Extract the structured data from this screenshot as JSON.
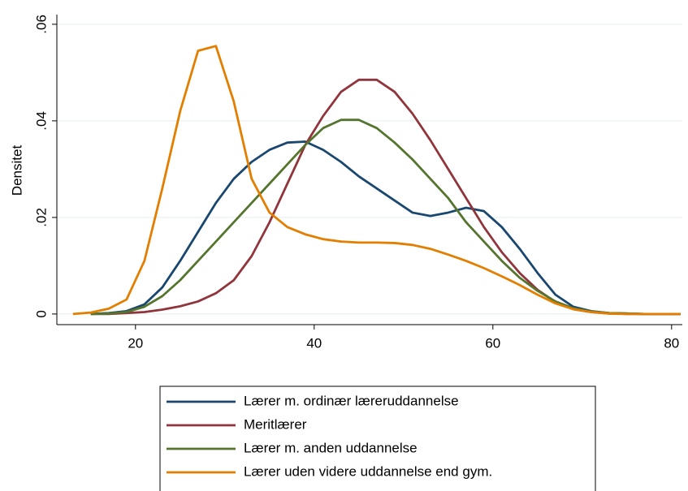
{
  "chart_data": {
    "type": "line",
    "y_label": "Densitet",
    "x": [
      13,
      15,
      17,
      19,
      21,
      23,
      25,
      27,
      29,
      31,
      33,
      35,
      37,
      39,
      41,
      43,
      45,
      47,
      49,
      51,
      53,
      55,
      57,
      59,
      61,
      63,
      65,
      67,
      69,
      71,
      73,
      75,
      77,
      79,
      81
    ],
    "series": [
      {
        "name": "Lærer m. ordinær læreruddannelse",
        "color": "#1a476f",
        "values": [
          null,
          0,
          0.0002,
          0.0006,
          0.002,
          0.0055,
          0.011,
          0.017,
          0.023,
          0.028,
          0.0315,
          0.034,
          0.0355,
          0.0357,
          0.034,
          0.0315,
          0.0285,
          0.026,
          0.0235,
          0.021,
          0.0203,
          0.021,
          0.022,
          0.0213,
          0.018,
          0.0135,
          0.0085,
          0.004,
          0.0015,
          0.0006,
          0.0002,
          0.0001,
          0,
          0,
          0
        ]
      },
      {
        "name": "Meritlærer",
        "color": "#90353b",
        "values": [
          null,
          0,
          0,
          0.0002,
          0.0004,
          0.0009,
          0.0016,
          0.0026,
          0.0043,
          0.007,
          0.012,
          0.019,
          0.027,
          0.035,
          0.041,
          0.046,
          0.0485,
          0.0485,
          0.046,
          0.0415,
          0.036,
          0.03,
          0.024,
          0.018,
          0.0128,
          0.0085,
          0.005,
          0.0025,
          0.001,
          0.0004,
          0.0001,
          0,
          0,
          0,
          0
        ]
      },
      {
        "name": "Lærer m. anden uddannelse",
        "color": "#55752f",
        "values": [
          null,
          0,
          0.0001,
          0.0004,
          0.0015,
          0.0037,
          0.007,
          0.011,
          0.015,
          0.019,
          0.023,
          0.027,
          0.031,
          0.035,
          0.0385,
          0.0402,
          0.0402,
          0.0385,
          0.0355,
          0.032,
          0.028,
          0.024,
          0.019,
          0.015,
          0.011,
          0.0075,
          0.0048,
          0.0026,
          0.0012,
          0.0005,
          0.0002,
          0.0001,
          0,
          0,
          0
        ]
      },
      {
        "name": "Lærer uden videre uddannelse end gym.",
        "color": "#e37e00",
        "values": [
          0,
          0.0003,
          0.0011,
          0.003,
          0.011,
          0.026,
          0.042,
          0.0545,
          0.0555,
          0.044,
          0.028,
          0.021,
          0.018,
          0.0165,
          0.0155,
          0.015,
          0.0148,
          0.0148,
          0.0147,
          0.0143,
          0.0135,
          0.0123,
          0.011,
          0.0095,
          0.0078,
          0.006,
          0.004,
          0.0022,
          0.001,
          0.0004,
          0.0001,
          0,
          0,
          0,
          0
        ]
      }
    ],
    "xlim": [
      11.2,
      81.2
    ],
    "xticks": [
      20,
      40,
      60,
      80
    ],
    "ylim": [
      -0.0022,
      0.062
    ],
    "yticks": [
      0,
      {
        "value": 0.02,
        "label": ".02"
      },
      {
        "value": 0.04,
        "label": ".04"
      },
      {
        "value": 0.06,
        "label": ".06"
      }
    ],
    "grid": true,
    "legend": "bottom"
  }
}
